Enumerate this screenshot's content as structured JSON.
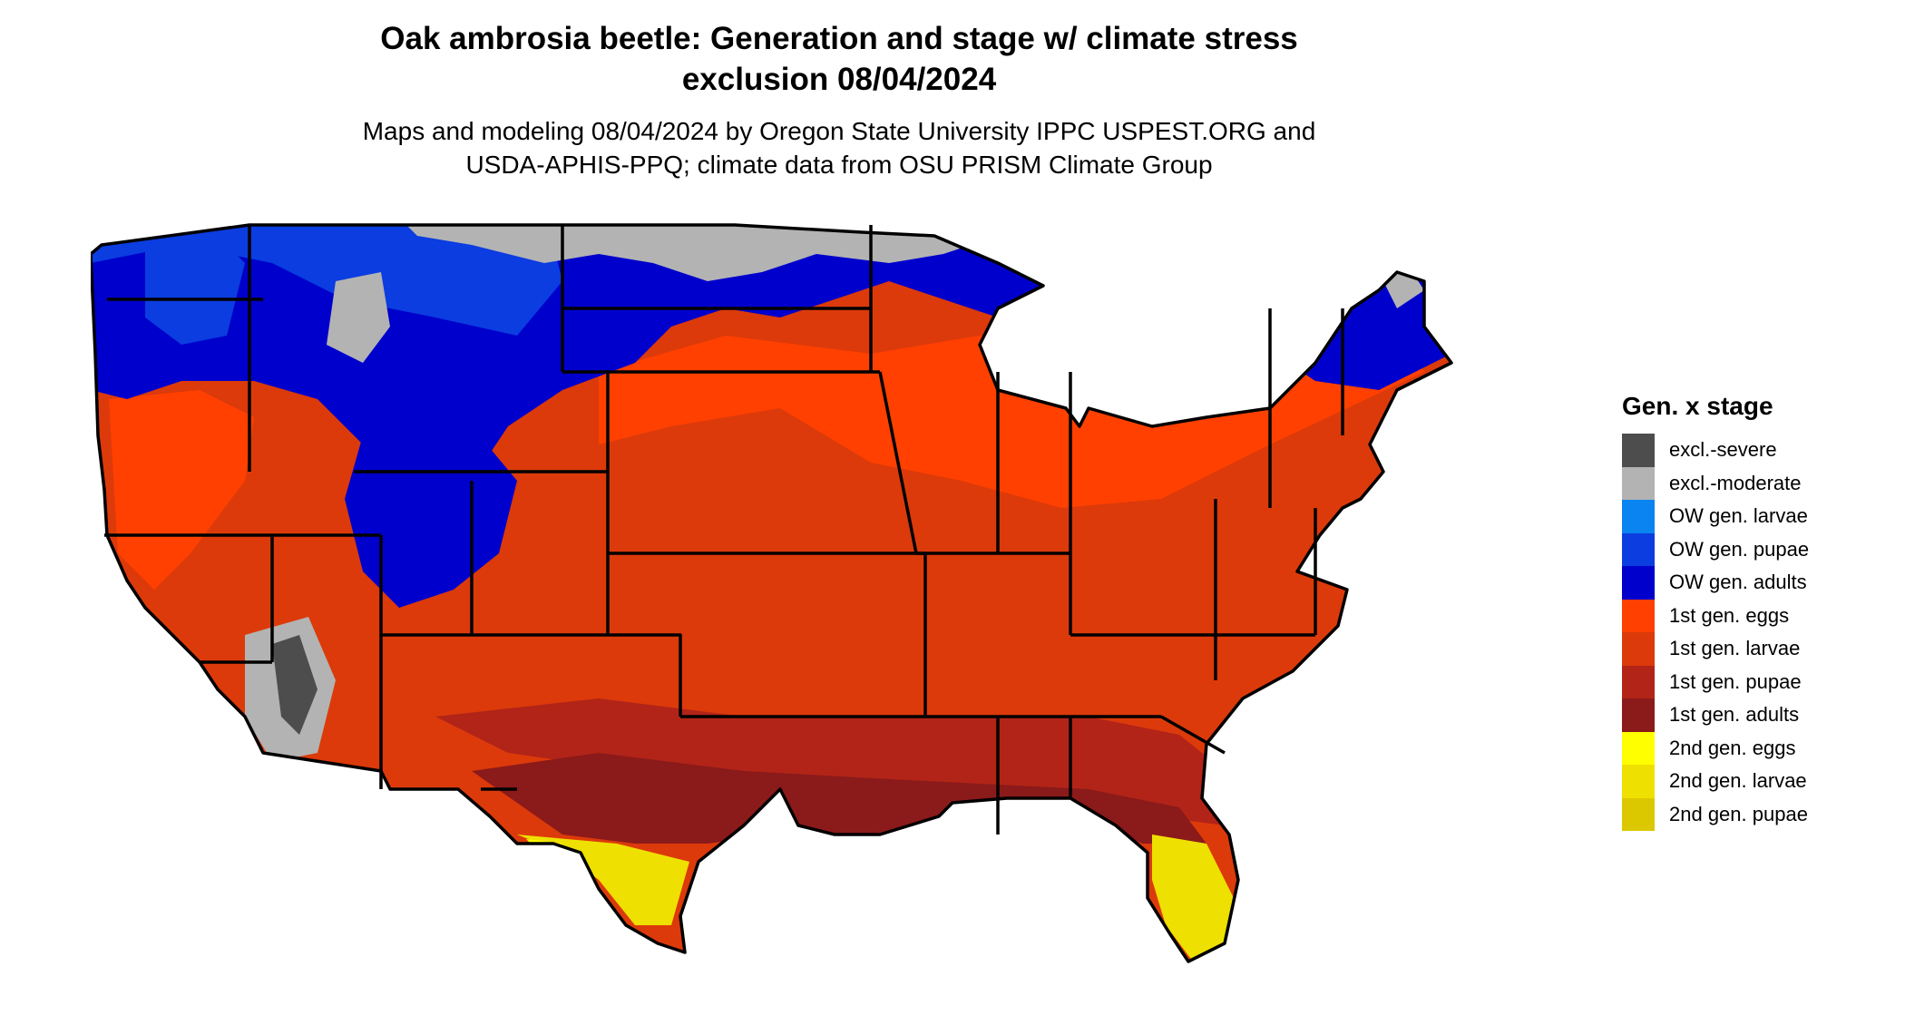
{
  "title": {
    "line1": "Oak ambrosia beetle: Generation and stage w/ climate stress",
    "line2": "exclusion 08/04/2024"
  },
  "subtitle": {
    "line1": "Maps and modeling 08/04/2024 by Oregon State University IPPC USPEST.ORG and",
    "line2": "USDA-APHIS-PPQ; climate data from OSU PRISM Climate Group"
  },
  "legend": {
    "title": "Gen. x stage",
    "items": [
      {
        "label": "excl.-severe",
        "color": "#4d4d4d"
      },
      {
        "label": "excl.-moderate",
        "color": "#b3b3b3"
      },
      {
        "label": "OW gen. larvae",
        "color": "#0a84f0"
      },
      {
        "label": "OW gen. pupae",
        "color": "#0b3de0"
      },
      {
        "label": "OW gen. adults",
        "color": "#0000cc"
      },
      {
        "label": "1st gen. eggs",
        "color": "#ff4000"
      },
      {
        "label": "1st gen. larvae",
        "color": "#dc3a0a"
      },
      {
        "label": "1st gen. pupae",
        "color": "#b22418"
      },
      {
        "label": "1st gen. adults",
        "color": "#8b1a1a"
      },
      {
        "label": "2nd gen. eggs",
        "color": "#ffff00"
      },
      {
        "label": "2nd gen. larvae",
        "color": "#eee000"
      },
      {
        "label": "2nd gen. pupae",
        "color": "#dcc800"
      }
    ]
  }
}
